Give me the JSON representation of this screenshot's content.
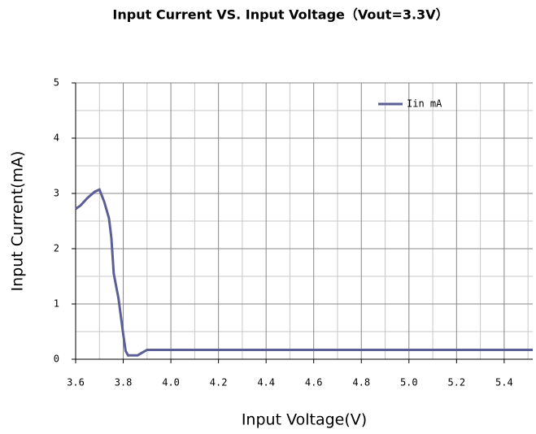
{
  "chart_data": {
    "type": "line",
    "title": "Input Current VS. Input Voltage（Vout=3.3V）",
    "x_label": "Input Voltage(V)",
    "y_label": "Input Current(mA)",
    "x": [
      3.6,
      3.62,
      3.65,
      3.68,
      3.7,
      3.72,
      3.74,
      3.75,
      3.76,
      3.78,
      3.8,
      3.81,
      3.82,
      3.86,
      3.88,
      3.9,
      5.52
    ],
    "series": [
      {
        "name": "Iin mA",
        "color": "#5b5f95",
        "values": [
          2.72,
          2.78,
          2.92,
          3.03,
          3.07,
          2.85,
          2.55,
          2.2,
          1.55,
          1.1,
          0.45,
          0.15,
          0.07,
          0.07,
          0.12,
          0.17,
          0.17
        ]
      }
    ],
    "xlim": [
      3.6,
      5.52
    ],
    "ylim": [
      0,
      5
    ],
    "xticks": [
      3.6,
      3.8,
      {
        "value": 4,
        "label": "4.0"
      },
      4.2,
      4.4,
      4.6,
      4.8,
      {
        "value": 5,
        "label": "5.0"
      },
      5.2,
      5.4
    ],
    "yticks": [
      0,
      1,
      2,
      3,
      4,
      5
    ],
    "minor_xticks": [
      3.7,
      3.9,
      4.1,
      4.3,
      4.5,
      4.7,
      4.9,
      5.1,
      5.3,
      5.5
    ],
    "minor_yticks": [
      0.5,
      1.5,
      2.5,
      3.5,
      4.5
    ],
    "grid": true,
    "legend": "upper right"
  }
}
